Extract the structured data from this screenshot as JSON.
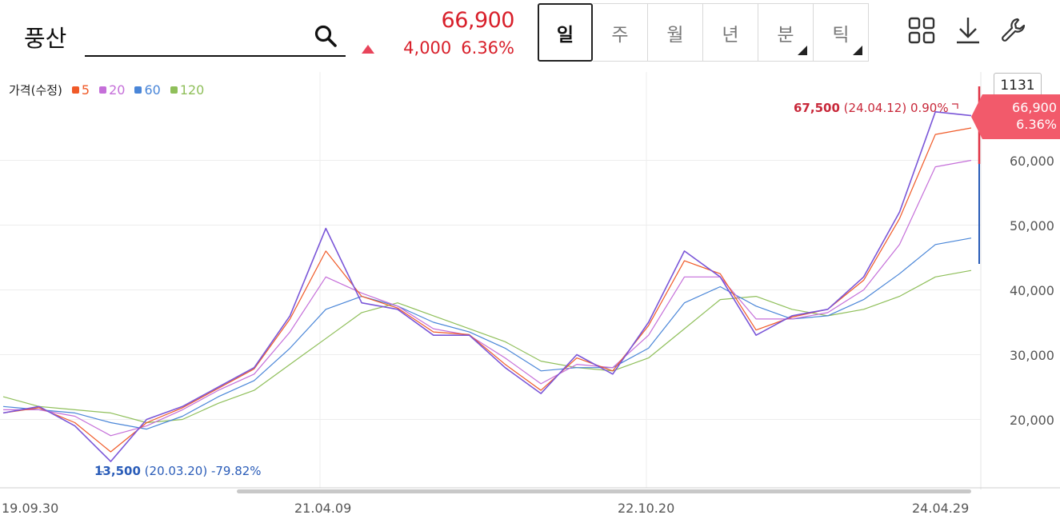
{
  "search": {
    "value": "풍산"
  },
  "quote": {
    "price": "66,900",
    "change": "4,000",
    "change_pct": "6.36%"
  },
  "period_tabs": [
    {
      "label": "일",
      "active": true
    },
    {
      "label": "주"
    },
    {
      "label": "월"
    },
    {
      "label": "년"
    },
    {
      "label": "분",
      "has_menu": true
    },
    {
      "label": "틱",
      "has_menu": true
    }
  ],
  "toolbar": {
    "icons": [
      "grid-layout-icon",
      "download-icon",
      "wrench-settings-icon"
    ]
  },
  "legend": {
    "title": "가격(수정)",
    "items": [
      {
        "label": "5",
        "color": "#f05a28"
      },
      {
        "label": "20",
        "color": "#c56fd9"
      },
      {
        "label": "60",
        "color": "#4a86d8"
      },
      {
        "label": "120",
        "color": "#8fbf5a"
      }
    ]
  },
  "pane_indicator": "1131",
  "price_flag": {
    "price": "66,900",
    "pct": "6.36%"
  },
  "annotations": {
    "high": {
      "value": "67,500",
      "detail": "(24.04.12) 0.90%"
    },
    "low": {
      "value": "13,500",
      "detail": "(20.03.20) -79.82%"
    }
  },
  "chart_data": {
    "type": "line",
    "y_ticks": [
      "60,000",
      "50,000",
      "40,000",
      "30,000",
      "20,000"
    ],
    "x_ticks": [
      "19.09.30",
      "21.04.09",
      "22.10.20",
      "24.04.29"
    ],
    "ylim": [
      13500,
      67500
    ],
    "last_price": 66900,
    "grid": true,
    "legend": "top-left",
    "x": [
      "19.09",
      "19.12",
      "20.03",
      "20.03",
      "20.06",
      "20.09",
      "20.12",
      "21.03",
      "21.04",
      "21.05",
      "21.07",
      "21.09",
      "21.12",
      "22.03",
      "22.06",
      "22.09",
      "22.10",
      "23.01",
      "23.03",
      "23.05",
      "23.07",
      "23.09",
      "23.12",
      "24.02",
      "24.03",
      "24.04",
      "24.04",
      "24.04"
    ],
    "series": [
      {
        "name": "가격(수정)",
        "color": "#7a56d8",
        "values": [
          21000,
          22000,
          19000,
          13500,
          20000,
          22000,
          25000,
          28000,
          36000,
          49500,
          38000,
          37000,
          33000,
          33000,
          28000,
          24000,
          30000,
          27000,
          35000,
          46000,
          42000,
          33000,
          36000,
          37000,
          42000,
          52000,
          67500,
          66900
        ]
      },
      {
        "name": "5",
        "color": "#f05a28",
        "values": [
          21000,
          21800,
          19500,
          15000,
          19500,
          21800,
          24800,
          27800,
          35500,
          46000,
          39000,
          37200,
          33500,
          33100,
          28500,
          24500,
          29500,
          27500,
          34500,
          44500,
          42500,
          33800,
          35800,
          37000,
          41500,
          51000,
          64000,
          65000
        ]
      },
      {
        "name": "20",
        "color": "#c56fd9",
        "values": [
          21500,
          21500,
          20500,
          17500,
          19000,
          21500,
          24500,
          27000,
          33500,
          42000,
          39500,
          37500,
          34000,
          33000,
          29500,
          25500,
          28500,
          28000,
          33000,
          42000,
          42000,
          35500,
          35500,
          36500,
          40000,
          47000,
          59000,
          60000
        ]
      },
      {
        "name": "60",
        "color": "#4a86d8",
        "values": [
          22000,
          21500,
          21000,
          19500,
          18500,
          20500,
          23500,
          26000,
          31000,
          37000,
          39000,
          37500,
          35000,
          33500,
          31000,
          27500,
          28000,
          28000,
          31000,
          38000,
          40500,
          37500,
          35500,
          36000,
          38500,
          42500,
          47000,
          48000
        ]
      },
      {
        "name": "120",
        "color": "#8fbf5a",
        "values": [
          23500,
          22000,
          21500,
          21000,
          19500,
          20000,
          22500,
          24500,
          28500,
          32500,
          36500,
          38000,
          36000,
          34000,
          32000,
          29000,
          28000,
          27500,
          29500,
          34000,
          38500,
          39000,
          37000,
          36000,
          37000,
          39000,
          42000,
          43000
        ]
      }
    ]
  }
}
